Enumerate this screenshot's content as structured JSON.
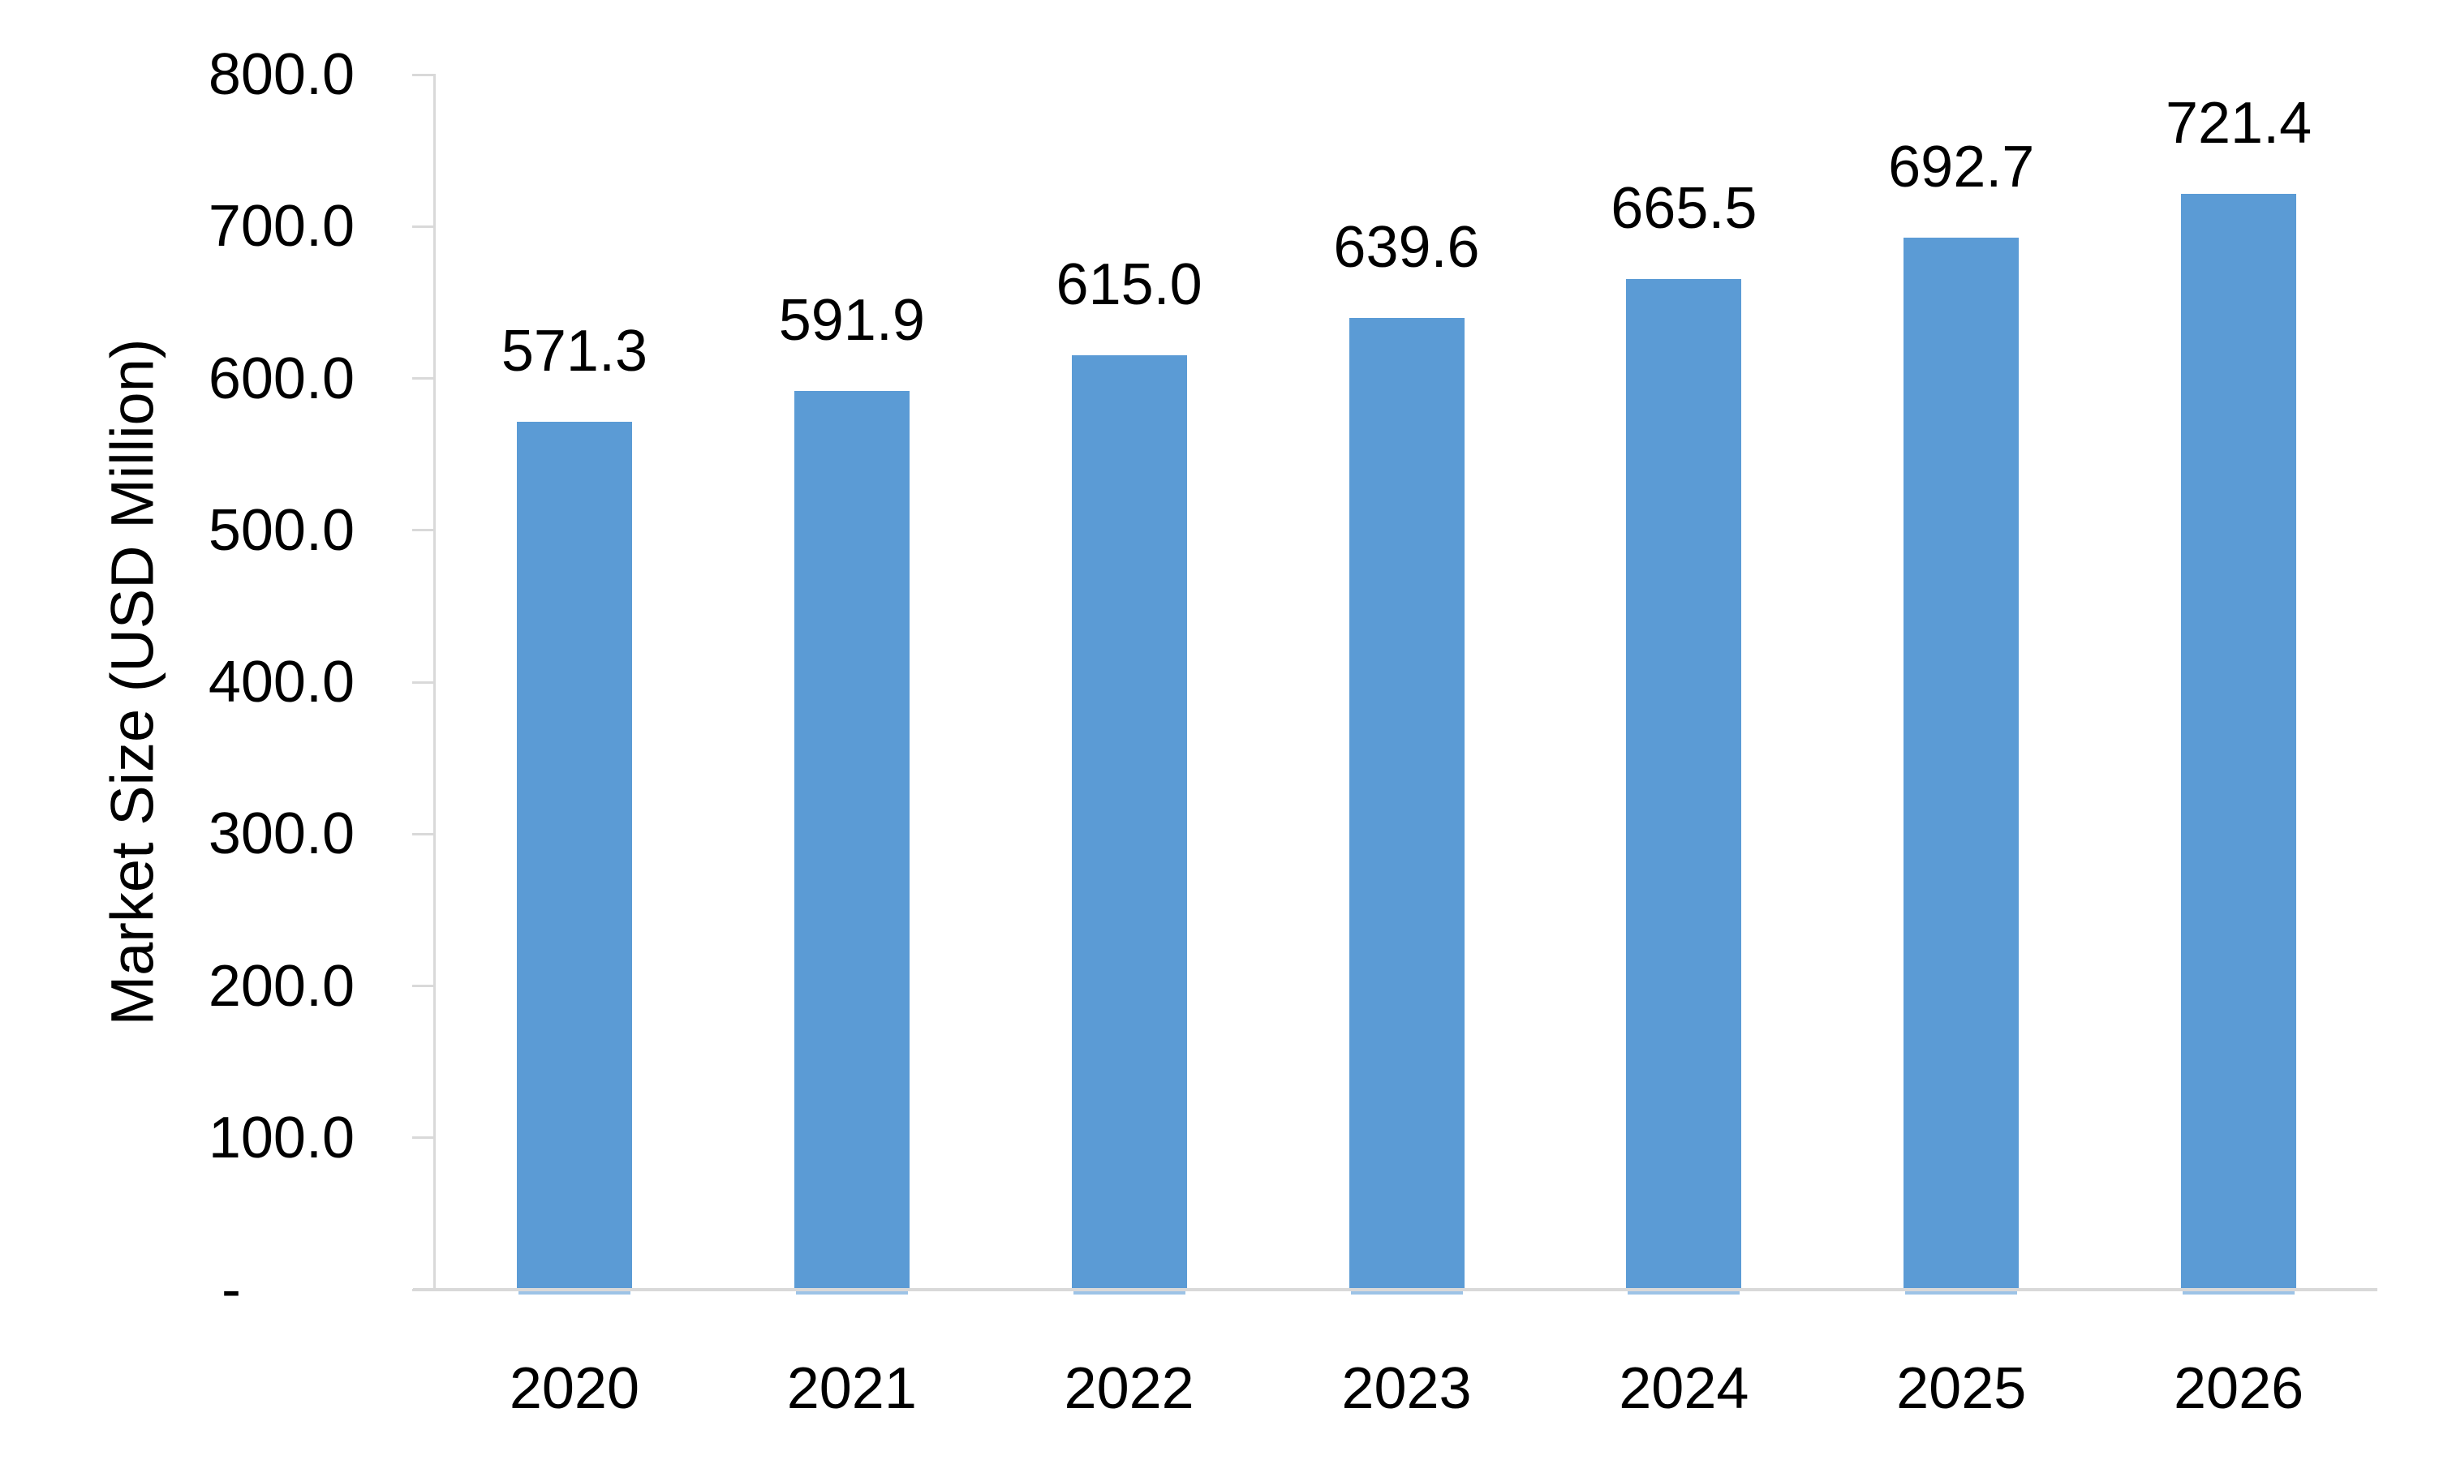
{
  "chart_data": {
    "type": "bar",
    "title": "",
    "categories": [
      "2020",
      "2021",
      "2022",
      "2023",
      "2024",
      "2025",
      "2026"
    ],
    "values": [
      571.3,
      591.9,
      615.0,
      639.6,
      665.5,
      692.7,
      721.4
    ],
    "value_labels": [
      "571.3",
      "591.9",
      "615.0",
      "639.6",
      "665.5",
      "692.7",
      "721.4"
    ],
    "xlabel": "",
    "ylabel": "Market Size (USD Million)",
    "ylim": [
      0,
      800
    ],
    "ytick_interval": 100,
    "ytick_labels": [
      "800.0",
      "700.0",
      "600.0",
      "500.0",
      "400.0",
      "300.0",
      "200.0",
      "100.0",
      "-"
    ],
    "grid": false,
    "legend": "none",
    "bar_color": "#5b9bd5",
    "axis_color": "#d9d9d9",
    "text_color": "#000000"
  }
}
